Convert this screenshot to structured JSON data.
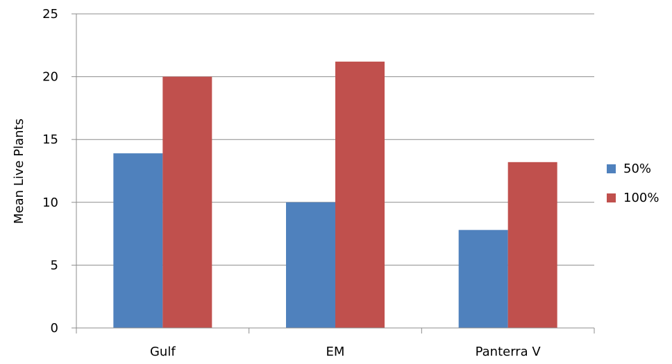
{
  "chart_data": {
    "type": "bar",
    "title": "",
    "xlabel": "",
    "ylabel": "Mean Live Plants",
    "categories": [
      "Gulf",
      "EM",
      "Panterra V"
    ],
    "series": [
      {
        "name": "50%",
        "values": [
          13.9,
          10.0,
          7.8
        ],
        "color": "#4F81BD"
      },
      {
        "name": "100%",
        "values": [
          20.0,
          21.2,
          13.2
        ],
        "color": "#C0504D"
      }
    ],
    "ylim": [
      0,
      25
    ],
    "yticks": [
      0,
      5,
      10,
      15,
      20,
      25
    ],
    "grid": true,
    "legend_position": "right"
  }
}
